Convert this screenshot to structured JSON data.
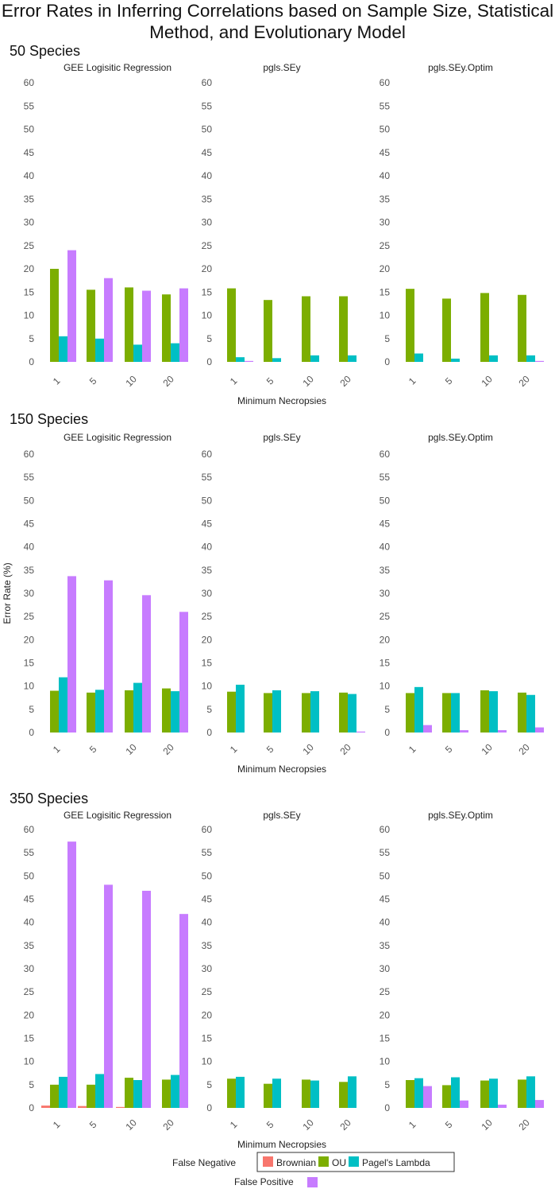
{
  "title_line1": "Error Rates in Inferring Correlations based on Sample Size, Statistical",
  "title_line2": "Method, and Evolutionary Model",
  "colors": {
    "Brownian": "#f8766d",
    "OU": "#7cae00",
    "Pagel's Lambda": "#00bfc4",
    "False Positive": "#c77cff"
  },
  "legend": {
    "false_negative_label": "False Negative",
    "false_positive_label": "False Positive",
    "entries": [
      "Brownian",
      "OU",
      "Pagel's Lambda"
    ]
  },
  "chart_data": {
    "type": "bar",
    "title": "Error Rates in Inferring Correlations based on Sample Size, Statistical Method, and Evolutionary Model",
    "xlabel": "Minimum Necropsies",
    "ylabel": "Error Rate (%)",
    "ylim": [
      0,
      60
    ],
    "yticks": [
      0,
      5,
      10,
      15,
      20,
      25,
      30,
      35,
      40,
      45,
      50,
      55,
      60
    ],
    "categories": [
      "1",
      "5",
      "10",
      "20"
    ],
    "series_names": [
      "Brownian",
      "OU",
      "Pagel's Lambda",
      "False Positive"
    ],
    "panels": [
      {
        "label": "50 Species",
        "facets": [
          {
            "name": "GEE Logisitic Regression",
            "series": [
              {
                "name": "Brownian",
                "values": [
                  0,
                  0,
                  0,
                  0
                ]
              },
              {
                "name": "OU",
                "values": [
                  20,
                  15.5,
                  16,
                  14.5
                ]
              },
              {
                "name": "Pagel's Lambda",
                "values": [
                  5.5,
                  5,
                  3.7,
                  4
                ]
              },
              {
                "name": "False Positive",
                "values": [
                  24,
                  18,
                  15.3,
                  15.8
                ]
              }
            ]
          },
          {
            "name": "pgls.SEy",
            "series": [
              {
                "name": "Brownian",
                "values": [
                  0,
                  0,
                  0,
                  0
                ]
              },
              {
                "name": "OU",
                "values": [
                  15.8,
                  13.3,
                  14.1,
                  14.1
                ]
              },
              {
                "name": "Pagel's Lambda",
                "values": [
                  1,
                  0.8,
                  1.4,
                  1.4
                ]
              },
              {
                "name": "False Positive",
                "values": [
                  0.2,
                  0,
                  0,
                  0
                ]
              }
            ]
          },
          {
            "name": "pgls.SEy.Optim",
            "series": [
              {
                "name": "Brownian",
                "values": [
                  0,
                  0,
                  0,
                  0
                ]
              },
              {
                "name": "OU",
                "values": [
                  15.7,
                  13.6,
                  14.8,
                  14.4
                ]
              },
              {
                "name": "Pagel's Lambda",
                "values": [
                  1.8,
                  0.7,
                  1.4,
                  1.4
                ]
              },
              {
                "name": "False Positive",
                "values": [
                  0,
                  0,
                  0,
                  0.2
                ]
              }
            ]
          }
        ]
      },
      {
        "label": "150 Species",
        "facets": [
          {
            "name": "GEE Logisitic Regression",
            "series": [
              {
                "name": "Brownian",
                "values": [
                  0,
                  0,
                  0,
                  0
                ]
              },
              {
                "name": "OU",
                "values": [
                  9,
                  8.6,
                  9.1,
                  9.5
                ]
              },
              {
                "name": "Pagel's Lambda",
                "values": [
                  11.9,
                  9.2,
                  10.7,
                  8.9
                ]
              },
              {
                "name": "False Positive",
                "values": [
                  33.7,
                  32.8,
                  29.6,
                  26
                ]
              }
            ]
          },
          {
            "name": "pgls.SEy",
            "series": [
              {
                "name": "Brownian",
                "values": [
                  0,
                  0,
                  0,
                  0
                ]
              },
              {
                "name": "OU",
                "values": [
                  8.8,
                  8.5,
                  8.5,
                  8.6
                ]
              },
              {
                "name": "Pagel's Lambda",
                "values": [
                  10.3,
                  9.1,
                  8.9,
                  8.3
                ]
              },
              {
                "name": "False Positive",
                "values": [
                  0,
                  0,
                  0,
                  0.2
                ]
              }
            ]
          },
          {
            "name": "pgls.SEy.Optim",
            "series": [
              {
                "name": "Brownian",
                "values": [
                  0,
                  0,
                  0,
                  0
                ]
              },
              {
                "name": "OU",
                "values": [
                  8.5,
                  8.5,
                  9.1,
                  8.6
                ]
              },
              {
                "name": "Pagel's Lambda",
                "values": [
                  9.8,
                  8.5,
                  8.9,
                  8.1
                ]
              },
              {
                "name": "False Positive",
                "values": [
                  1.6,
                  0.5,
                  0.5,
                  1.1
                ]
              }
            ]
          }
        ]
      },
      {
        "label": "350 Species",
        "facets": [
          {
            "name": "GEE Logisitic Regression",
            "series": [
              {
                "name": "Brownian",
                "values": [
                  0.5,
                  0.4,
                  0.2,
                  0
                ]
              },
              {
                "name": "OU",
                "values": [
                  5,
                  5,
                  6.5,
                  6.1
                ]
              },
              {
                "name": "Pagel's Lambda",
                "values": [
                  6.7,
                  7.3,
                  6,
                  7.1
                ]
              },
              {
                "name": "False Positive",
                "values": [
                  57.4,
                  48.1,
                  46.8,
                  41.8
                ]
              }
            ]
          },
          {
            "name": "pgls.SEy",
            "series": [
              {
                "name": "Brownian",
                "values": [
                  0,
                  0,
                  0,
                  0
                ]
              },
              {
                "name": "OU",
                "values": [
                  6.3,
                  5.2,
                  6.1,
                  5.6
                ]
              },
              {
                "name": "Pagel's Lambda",
                "values": [
                  6.7,
                  6.3,
                  5.9,
                  6.8
                ]
              },
              {
                "name": "False Positive",
                "values": [
                  0,
                  0,
                  0,
                  0
                ]
              }
            ]
          },
          {
            "name": "pgls.SEy.Optim",
            "series": [
              {
                "name": "Brownian",
                "values": [
                  0,
                  0,
                  0,
                  0
                ]
              },
              {
                "name": "OU",
                "values": [
                  6,
                  4.9,
                  5.9,
                  6.1
                ]
              },
              {
                "name": "Pagel's Lambda",
                "values": [
                  6.4,
                  6.6,
                  6.3,
                  6.8
                ]
              },
              {
                "name": "False Positive",
                "values": [
                  4.7,
                  1.6,
                  0.7,
                  1.7
                ]
              }
            ]
          }
        ]
      }
    ]
  }
}
